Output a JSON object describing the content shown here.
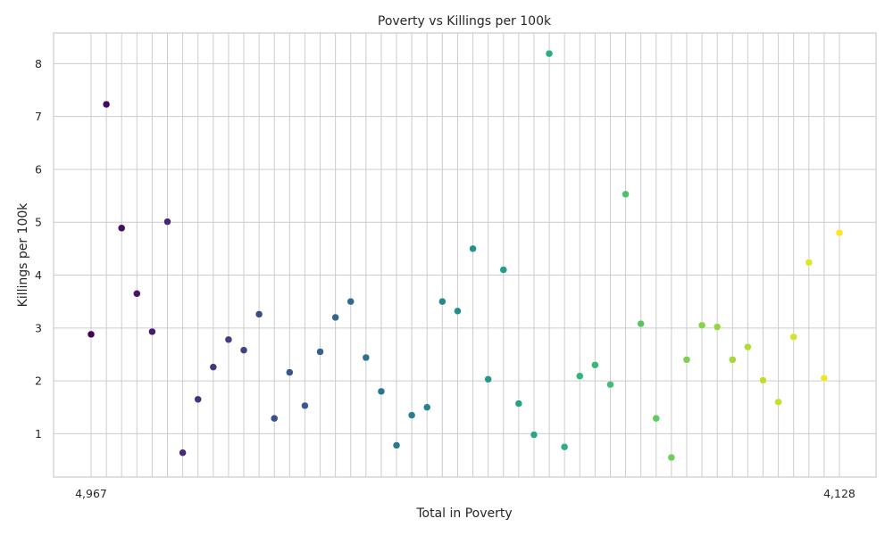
{
  "chart_data": {
    "type": "scatter",
    "title": "Poverty vs Killings per 100k",
    "xlabel": "Total in Poverty",
    "ylabel": "Killings per 100k",
    "grid": true,
    "legend": "none",
    "ylim": [
      0.18,
      8.58
    ],
    "yticks": [
      "1",
      "2",
      "3",
      "4",
      "5",
      "6",
      "7",
      "8"
    ],
    "x_first_label": "4,967",
    "x_last_label": "4,128",
    "colormap": [
      "#440154",
      "#482878",
      "#3e4a89",
      "#31688e",
      "#26828e",
      "#1f9e89",
      "#35b779",
      "#6ece58",
      "#b5de2b",
      "#fde725"
    ],
    "y": [
      2.88,
      7.23,
      4.89,
      3.65,
      2.93,
      5.01,
      0.64,
      1.65,
      2.26,
      2.78,
      2.58,
      3.26,
      1.29,
      2.16,
      1.53,
      2.55,
      3.2,
      3.5,
      2.44,
      1.8,
      0.78,
      1.35,
      1.5,
      3.5,
      3.32,
      4.5,
      2.03,
      4.1,
      1.57,
      0.98,
      8.19,
      0.75,
      2.09,
      2.3,
      1.93,
      5.53,
      3.08,
      1.29,
      0.55,
      2.4,
      3.05,
      3.02,
      2.4,
      2.64,
      2.01,
      1.6,
      2.83,
      4.24,
      2.05,
      4.8
    ]
  }
}
